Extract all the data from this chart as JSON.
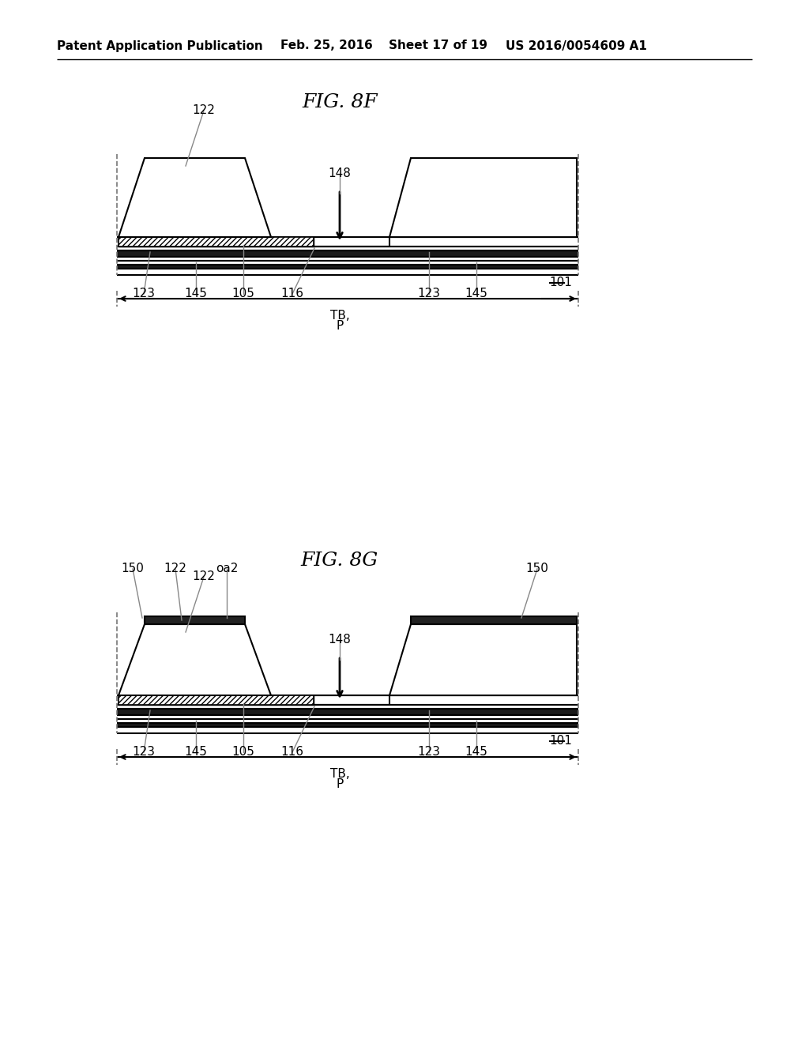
{
  "bg_color": "#ffffff",
  "header_text": "Patent Application Publication",
  "header_date": "Feb. 25, 2016",
  "header_sheet": "Sheet 17 of 19",
  "header_patent": "US 2016/0054609 A1",
  "fig8f_title": "FIG. 8F",
  "fig8g_title": "FIG. 8G",
  "line_color": "#000000"
}
